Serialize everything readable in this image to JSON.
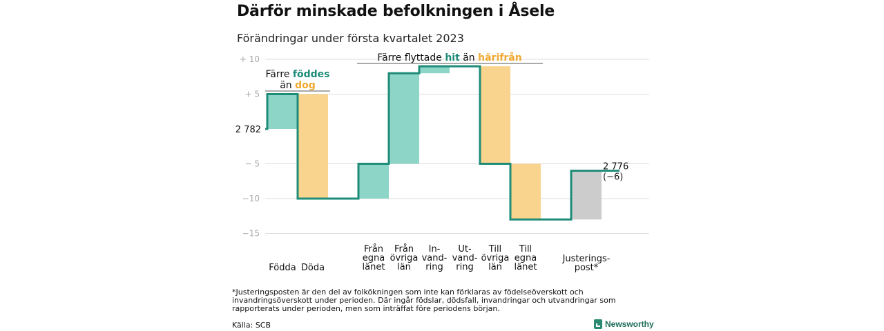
{
  "title": "Därför minskade befolkningen i Åsele",
  "subtitle": "Förändringar under första kvartalet 2023",
  "colors": {
    "teal": "#1e8c78",
    "teal_fill": "#8dd5c7",
    "orange": "#f0a830",
    "orange_fill": "#f9d48e",
    "gray_fill": "#cccccc",
    "grid": "#dddddd"
  },
  "chart_data": {
    "type": "waterfall",
    "start_label": "2 782",
    "end_label_lines": [
      "2 776",
      "(−6)"
    ],
    "y_ticks": [
      {
        "value": 10,
        "label": "+ 10"
      },
      {
        "value": 5,
        "label": "+ 5"
      },
      {
        "value": -5,
        "label": "− 5"
      },
      {
        "value": -10,
        "label": "−10"
      },
      {
        "value": -15,
        "label": "−15"
      }
    ],
    "ylim": [
      -15,
      10
    ],
    "grid": true,
    "steps": [
      {
        "label": [
          "Födda"
        ],
        "change": 5,
        "kind": "increase"
      },
      {
        "label": [
          "Döda"
        ],
        "change": -15,
        "kind": "decrease"
      },
      {
        "label": [
          ""
        ],
        "change": 0,
        "kind": "gap"
      },
      {
        "label": [
          "Från",
          "egna",
          "länet"
        ],
        "change": 5,
        "kind": "increase"
      },
      {
        "label": [
          "Från",
          "övriga",
          "län"
        ],
        "change": 13,
        "kind": "increase"
      },
      {
        "label": [
          "In-",
          "vand-",
          "ring"
        ],
        "change": 1,
        "kind": "increase"
      },
      {
        "label": [
          "Ut-",
          "vand-",
          "ring"
        ],
        "change": 0,
        "kind": "increase"
      },
      {
        "label": [
          "Till",
          "övriga",
          "län"
        ],
        "change": -14,
        "kind": "decrease"
      },
      {
        "label": [
          "Till",
          "egna",
          "länet"
        ],
        "change": -8,
        "kind": "decrease"
      },
      {
        "label": [
          ""
        ],
        "change": 0,
        "kind": "gap"
      },
      {
        "label": [
          "Justerings-",
          "post*"
        ],
        "change": 7,
        "kind": "adjustment"
      }
    ],
    "annotations": {
      "births": {
        "line1_prefix": "Färre ",
        "line1_highlight": "föddes",
        "line2_prefix": "än ",
        "line2_highlight": "dog"
      },
      "migration": {
        "prefix": "Färre flyttade ",
        "highlight1": "hit",
        "middle": " än ",
        "highlight2": "härifrån"
      }
    }
  },
  "footnote": "*Justeringsposten är den del av folkökningen som inte kan förklaras av födelseöverskott och invandringsöverskott under perioden. Där ingår födslar, dödsfall, invandringar och utvandringar som rapporterats under perioden, men som inträffat före periodens början.",
  "source": "Källa: SCB",
  "brand": "Newsworthy"
}
